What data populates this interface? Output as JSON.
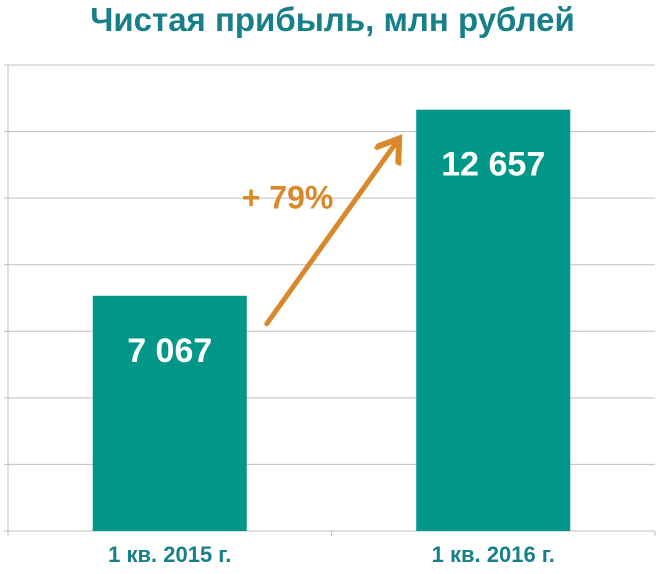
{
  "chart_data": {
    "type": "bar",
    "title": "Чистая прибыль, млн рублей",
    "categories": [
      "1 кв. 2015 г.",
      "1 кв. 2016 г."
    ],
    "values": [
      7067,
      12657
    ],
    "value_labels": [
      "7 067",
      "12 657"
    ],
    "ylim": [
      0,
      14000
    ],
    "y_gridline_step": 2000,
    "grid": true,
    "legend": "none",
    "annotation": {
      "text": "+ 79%",
      "type": "arrow",
      "from_category": 0,
      "to_category": 1
    },
    "colors": {
      "bar": "#009688",
      "title": "#177f8a",
      "category_label": "#177f8a",
      "annotation": "#d9892b",
      "grid": "#bfbfbf"
    }
  }
}
